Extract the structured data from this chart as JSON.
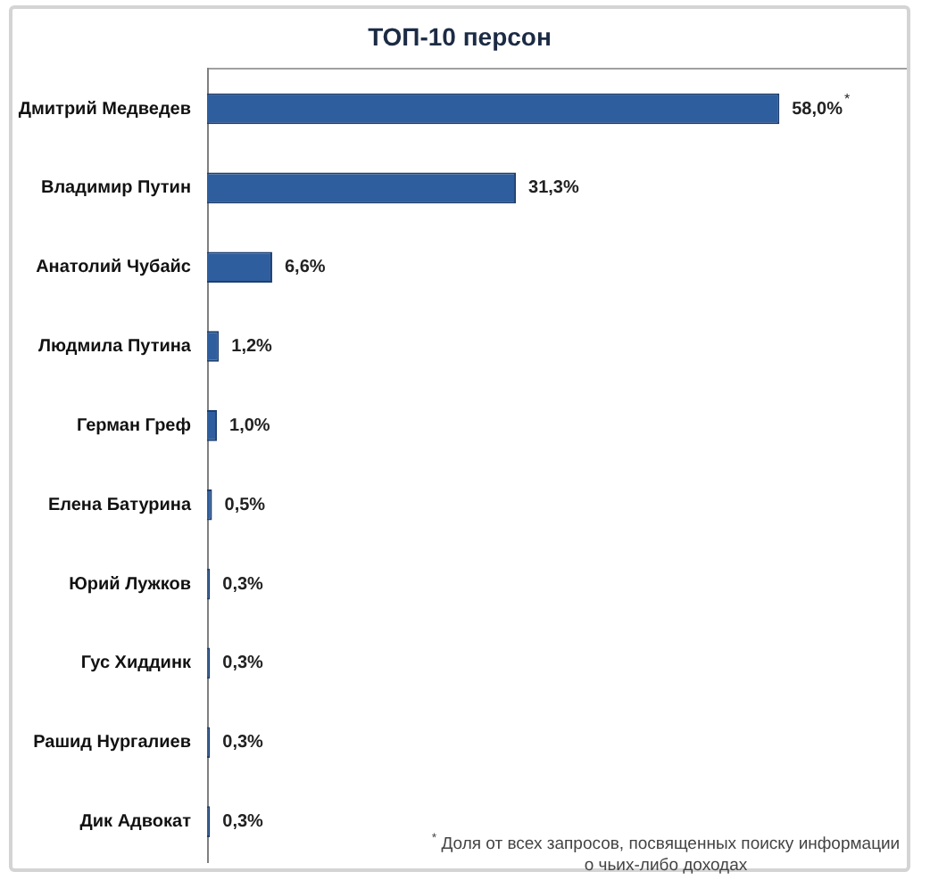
{
  "chart_data": {
    "type": "bar",
    "orientation": "horizontal",
    "title": "ТОП-10 персон",
    "categories": [
      "Дмитрий Медведев",
      "Владимир Путин",
      "Анатолий Чубайс",
      "Людмила Путина",
      "Герман Греф",
      "Елена Батурина",
      "Юрий Лужков",
      "Гус Хиддинк",
      "Рашид Нургалиев",
      "Дик Адвокат"
    ],
    "values": [
      58.0,
      31.3,
      6.6,
      1.2,
      1.0,
      0.5,
      0.3,
      0.3,
      0.3,
      0.3
    ],
    "color": "#2f5e9e",
    "value_labels": [
      "58,0%$^{*}$",
      "31,3%",
      "6,6%",
      "1,2%",
      "1,0%",
      "0,5%",
      "0,3%",
      "0,3%",
      "0,3%",
      "0,3%"
    ],
    "annotations": [
      "$^{*}$ Доля от всех запросов, посвященных поиску информации о чьих-либо доходах"
    ],
    "tick_labels": "y",
    "grid": false,
    "legend": false
  }
}
